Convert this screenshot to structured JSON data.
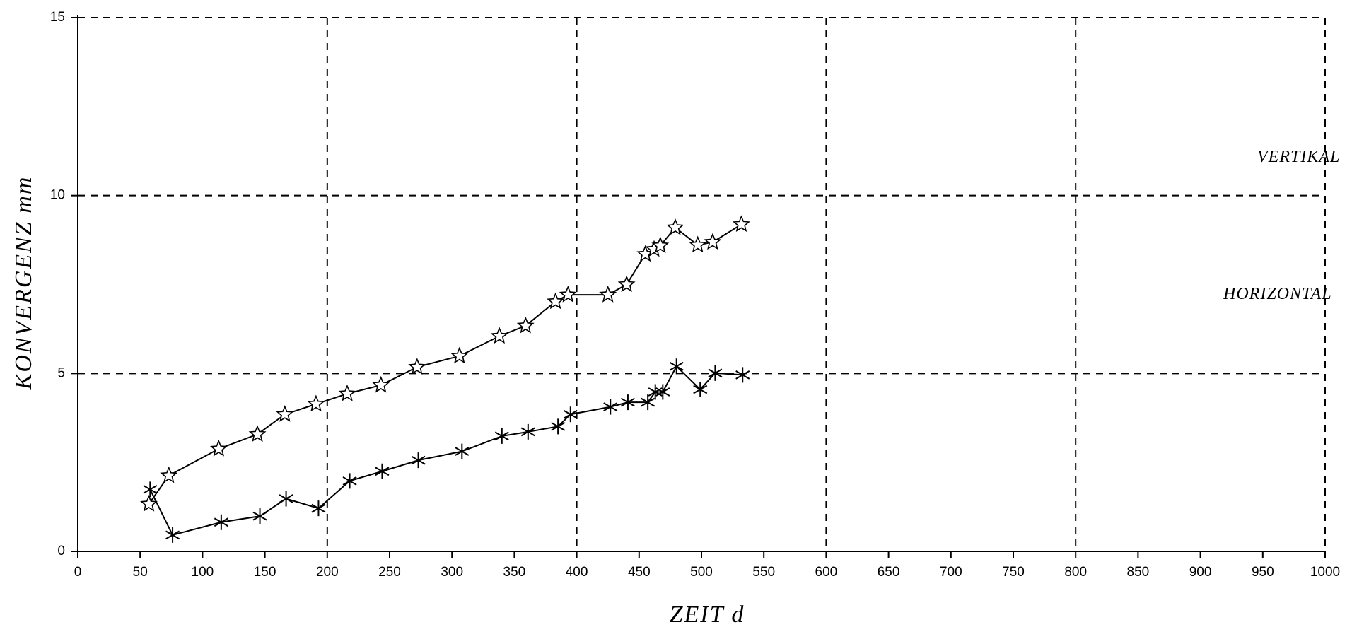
{
  "chart_data": {
    "type": "line",
    "xlabel": "ZEIT d",
    "ylabel": "KONVERGENZ mm",
    "xlim": [
      0,
      1000
    ],
    "ylim": [
      0,
      15
    ],
    "xticks": [
      0,
      50,
      100,
      150,
      200,
      250,
      300,
      350,
      400,
      450,
      500,
      550,
      600,
      650,
      700,
      750,
      800,
      850,
      900,
      950,
      1000
    ],
    "yticks": [
      0,
      5,
      10,
      15
    ],
    "grid": true,
    "series": [
      {
        "name": "VERTIKAL",
        "color": "#000000",
        "marker": "star",
        "x": [
          57,
          73,
          113,
          144,
          166,
          191,
          216,
          243,
          272,
          306,
          338,
          359,
          383,
          393,
          425,
          440,
          455,
          462,
          467,
          479,
          497,
          509,
          532
        ],
        "values": [
          1.33,
          2.13,
          2.88,
          3.29,
          3.85,
          4.14,
          4.43,
          4.67,
          5.18,
          5.49,
          6.05,
          6.34,
          7.02,
          7.21,
          7.21,
          7.5,
          8.35,
          8.49,
          8.59,
          9.1,
          8.61,
          8.69,
          9.19
        ]
      },
      {
        "name": "HORIZONTAL",
        "color": "#000000",
        "marker": "asterisk",
        "x": [
          58,
          76,
          115,
          146,
          167,
          193,
          218,
          244,
          273,
          308,
          340,
          361,
          385,
          395,
          427,
          441,
          457,
          463,
          469,
          480,
          499,
          511,
          533
        ],
        "values": [
          1.74,
          0.46,
          0.82,
          0.99,
          1.48,
          1.21,
          1.98,
          2.25,
          2.56,
          2.81,
          3.24,
          3.36,
          3.51,
          3.85,
          4.06,
          4.19,
          4.19,
          4.48,
          4.48,
          5.2,
          4.55,
          5.01,
          4.96
        ]
      }
    ]
  }
}
